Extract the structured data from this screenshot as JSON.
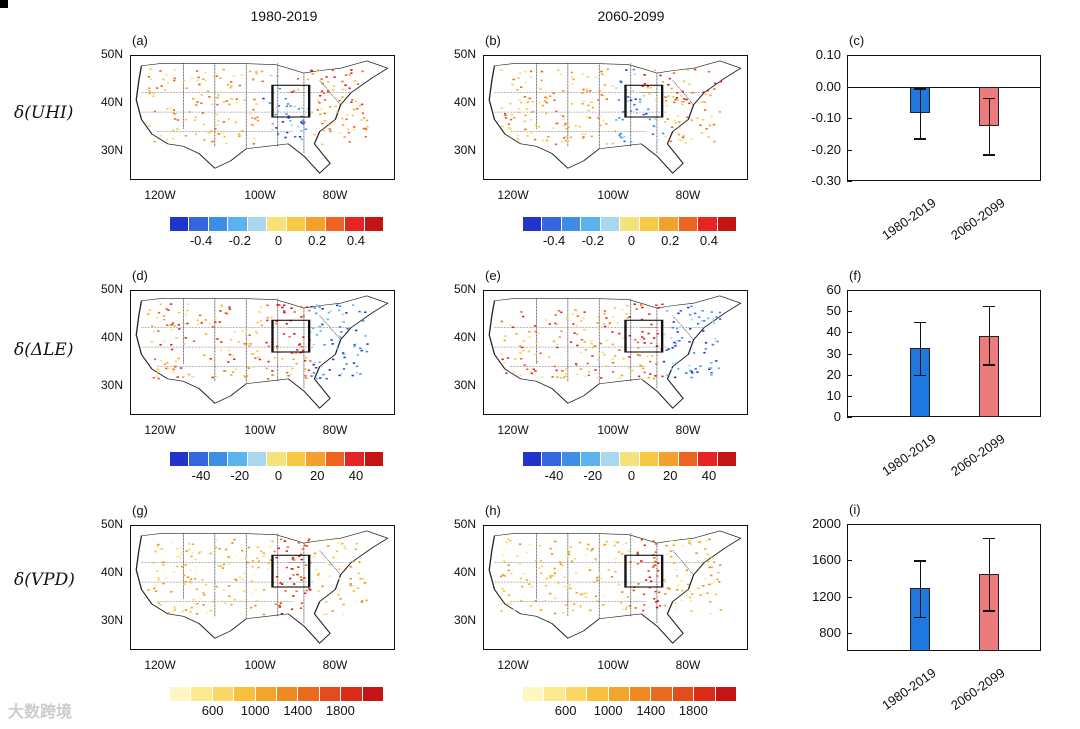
{
  "column_titles": [
    "1980-2019",
    "2060-2099"
  ],
  "row_labels": [
    "δ(UHI)",
    "δ(ΔLE)",
    "δ(VPD)"
  ],
  "map_axes": {
    "lat_labels": [
      "50N",
      "40N",
      "30N"
    ],
    "lon_labels": [
      "120W",
      "100W",
      "80W"
    ]
  },
  "colors": {
    "blue_bar": "#1f77e0",
    "red_bar": "#ec7b7e",
    "diverging_scale": [
      "#2233cc",
      "#3566dd",
      "#3e8ee8",
      "#5bb4ee",
      "#a9d8ee",
      "#f5e27a",
      "#f7c842",
      "#f3a02c",
      "#ee6322",
      "#e62424",
      "#c41414"
    ],
    "sequential_scale": [
      "#fff6c2",
      "#fde98e",
      "#fbd766",
      "#f8c03d",
      "#f3a42b",
      "#ee8a21",
      "#e96a1d",
      "#e44c1b",
      "#dc2b17",
      "#c41414"
    ]
  },
  "maps": [
    {
      "id": "a",
      "letter": "(a)",
      "row": 0,
      "col": 0,
      "colorbar": "diverging",
      "cb_labels": [
        "-0.4",
        "-0.2",
        "0",
        "0.2",
        "0.4"
      ]
    },
    {
      "id": "b",
      "letter": "(b)",
      "row": 0,
      "col": 1,
      "colorbar": "diverging",
      "cb_labels": [
        "-0.4",
        "-0.2",
        "0",
        "0.2",
        "0.4"
      ]
    },
    {
      "id": "d",
      "letter": "(d)",
      "row": 1,
      "col": 0,
      "colorbar": "diverging",
      "cb_labels": [
        "-40",
        "-20",
        "0",
        "20",
        "40"
      ]
    },
    {
      "id": "e",
      "letter": "(e)",
      "row": 1,
      "col": 1,
      "colorbar": "diverging",
      "cb_labels": [
        "-40",
        "-20",
        "0",
        "20",
        "40"
      ]
    },
    {
      "id": "g",
      "letter": "(g)",
      "row": 2,
      "col": 0,
      "colorbar": "sequential",
      "cb_labels": [
        "600",
        "1000",
        "1400",
        "1800"
      ]
    },
    {
      "id": "h",
      "letter": "(h)",
      "row": 2,
      "col": 1,
      "colorbar": "sequential",
      "cb_labels": [
        "600",
        "1000",
        "1400",
        "1800"
      ]
    }
  ],
  "chart_data": [
    {
      "type": "bar",
      "id": "c",
      "letter": "(c)",
      "categories": [
        "1980-2019",
        "2060-2099"
      ],
      "values": [
        -0.085,
        -0.125
      ],
      "error_low": [
        -0.165,
        -0.215
      ],
      "error_high": [
        -0.005,
        -0.035
      ],
      "ylim": [
        -0.3,
        0.1
      ],
      "yticks": [
        0.1,
        0.0,
        -0.1,
        -0.2,
        -0.3
      ],
      "ytick_labels": [
        "0.10",
        "0.00",
        "-0.10",
        "-0.20",
        "-0.30"
      ],
      "zero_line": true
    },
    {
      "type": "bar",
      "id": "f",
      "letter": "(f)",
      "categories": [
        "1980-2019",
        "2060-2099"
      ],
      "values": [
        32.5,
        38.5
      ],
      "error_low": [
        20,
        25
      ],
      "error_high": [
        45,
        52.5
      ],
      "ylim": [
        0,
        60
      ],
      "yticks": [
        60,
        50,
        40,
        30,
        20,
        10,
        0
      ],
      "ytick_labels": [
        "60",
        "50",
        "40",
        "30",
        "20",
        "10",
        "0"
      ]
    },
    {
      "type": "bar",
      "id": "i",
      "letter": "(i)",
      "categories": [
        "1980-2019",
        "2060-2099"
      ],
      "values": [
        1290,
        1450
      ],
      "error_low": [
        980,
        1050
      ],
      "error_high": [
        1600,
        1850
      ],
      "ylim": [
        600,
        2000
      ],
      "yticks": [
        2000,
        1600,
        1200,
        800
      ],
      "ytick_labels": [
        "2000",
        "1600",
        "1200",
        "800"
      ]
    }
  ],
  "watermark": "大数跨境"
}
